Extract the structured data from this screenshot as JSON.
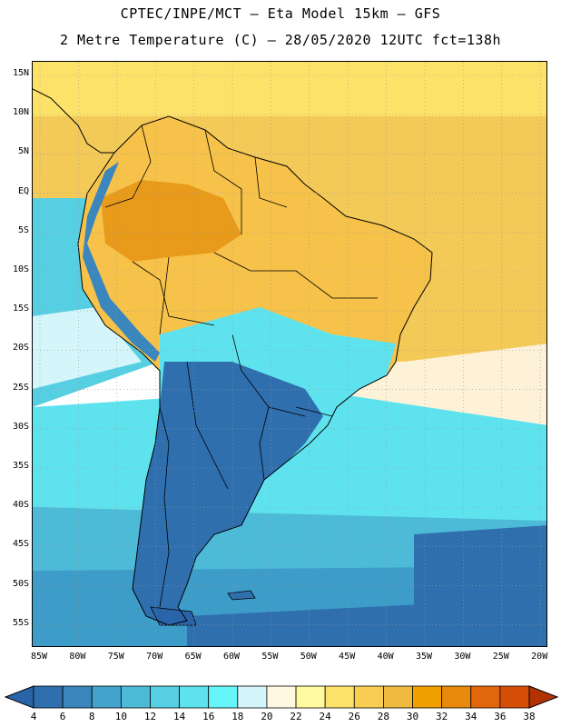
{
  "title_line1": "CPTEC/INPE/MCT –  Eta Model 15km – GFS",
  "title_line2": "2 Metre Temperature (C) – 28/05/2020 12UTC fct=138h",
  "lat_labels": [
    "15N",
    "10N",
    "5N",
    "EQ",
    "5S",
    "10S",
    "15S",
    "20S",
    "25S",
    "30S",
    "35S",
    "40S",
    "45S",
    "50S",
    "55S"
  ],
  "lon_labels": [
    "85W",
    "80W",
    "75W",
    "70W",
    "65W",
    "60W",
    "55W",
    "50W",
    "45W",
    "40W",
    "35W",
    "30W",
    "25W",
    "20W"
  ],
  "colorbar": {
    "levels": [
      "4",
      "6",
      "8",
      "10",
      "12",
      "14",
      "16",
      "18",
      "20",
      "22",
      "24",
      "26",
      "28",
      "30",
      "32",
      "34",
      "36",
      "38"
    ],
    "colors": [
      "#2f6fae",
      "#3a86bd",
      "#43a3cc",
      "#4dbad8",
      "#56cfe3",
      "#5ee3ee",
      "#66f5f8",
      "#d4f6fb",
      "#fff8e0",
      "#fffaa0",
      "#fde26a",
      "#f7cd52",
      "#f0b93f",
      "#f0a000",
      "#ea8a0c",
      "#e2670c",
      "#d44e07",
      "#c23a05"
    ],
    "under_color": "#2a64a8",
    "over_color": "#b33203"
  },
  "colors": {
    "ocean_north": "#f3c958",
    "ocean_mid": "#fdf2d8",
    "ocean_cyan": "#5ee3ee",
    "ocean_south": "#3d9cc8",
    "land_cold": "#2f6fae",
    "land_warm": "#f6c24a",
    "land_hot": "#e89a1a"
  }
}
